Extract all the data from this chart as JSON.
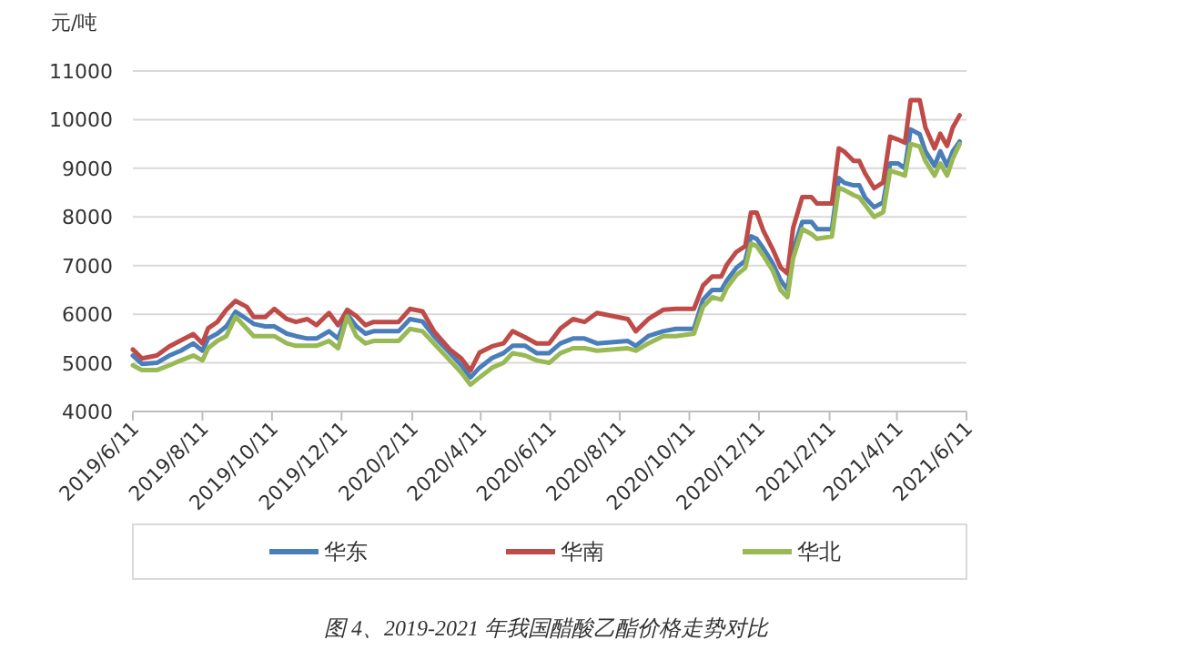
{
  "chart_data": {
    "type": "line",
    "title": "图 4、2019-2021 年我国醋酸乙酯价格走势对比",
    "ylabel": "元/吨",
    "x": [
      "2019-06-11",
      "2019-06-19",
      "2019-07-02",
      "2019-07-13",
      "2019-07-23",
      "2019-08-03",
      "2019-08-11",
      "2019-08-16",
      "2019-08-24",
      "2019-09-01",
      "2019-09-09",
      "2019-09-19",
      "2019-09-25",
      "2019-10-05",
      "2019-10-13",
      "2019-10-24",
      "2019-11-01",
      "2019-11-11",
      "2019-11-19",
      "2019-11-30",
      "2019-12-08",
      "2019-12-16",
      "2019-12-24",
      "2020-01-01",
      "2020-01-08",
      "2020-01-30",
      "2020-02-09",
      "2020-02-20",
      "2020-03-01",
      "2020-03-15",
      "2020-03-25",
      "2020-04-02",
      "2020-04-10",
      "2020-04-21",
      "2020-05-01",
      "2020-05-09",
      "2020-05-20",
      "2020-05-30",
      "2020-06-10",
      "2020-06-20",
      "2020-07-01",
      "2020-07-11",
      "2020-07-22",
      "2020-08-18",
      "2020-08-25",
      "2020-09-05",
      "2020-09-18",
      "2020-09-29",
      "2020-10-15",
      "2020-10-23",
      "2020-10-31",
      "2020-11-08",
      "2020-11-13",
      "2020-11-21",
      "2020-11-29",
      "2020-12-04",
      "2020-12-09",
      "2020-12-15",
      "2020-12-23",
      "2020-12-30",
      "2021-01-05",
      "2021-01-10",
      "2021-01-18",
      "2021-01-26",
      "2021-01-31",
      "2021-02-13",
      "2021-02-19",
      "2021-02-24",
      "2021-03-04",
      "2021-03-09",
      "2021-03-14",
      "2021-03-22",
      "2021-03-30",
      "2021-04-05",
      "2021-04-12",
      "2021-04-18",
      "2021-04-23",
      "2021-05-01",
      "2021-05-06",
      "2021-05-14",
      "2021-05-19",
      "2021-05-25",
      "2021-05-30",
      "2021-06-05"
    ],
    "series": [
      {
        "name": "华东",
        "color": "#4a7ebb",
        "values": [
          5150,
          4980,
          5000,
          5150,
          5250,
          5400,
          5250,
          5500,
          5600,
          5750,
          6050,
          5900,
          5800,
          5750,
          5750,
          5600,
          5550,
          5500,
          5500,
          5650,
          5500,
          6000,
          5750,
          5600,
          5650,
          5650,
          5900,
          5850,
          5550,
          5200,
          4950,
          4700,
          4900,
          5100,
          5200,
          5350,
          5350,
          5200,
          5200,
          5400,
          5500,
          5500,
          5400,
          5450,
          5350,
          5550,
          5650,
          5700,
          5700,
          6300,
          6500,
          6500,
          6700,
          6950,
          7100,
          7600,
          7550,
          7350,
          7050,
          6700,
          6500,
          7300,
          7900,
          7900,
          7750,
          7750,
          8800,
          8700,
          8650,
          8650,
          8400,
          8200,
          8300,
          9100,
          9100,
          9000,
          9800,
          9700,
          9350,
          9050,
          9350,
          9050,
          9350,
          9550
        ]
      },
      {
        "name": "华南",
        "color": "#be4b48",
        "values": [
          5275,
          5090,
          5150,
          5340,
          5460,
          5590,
          5400,
          5710,
          5840,
          6090,
          6275,
          6150,
          5940,
          5940,
          6110,
          5900,
          5840,
          5900,
          5775,
          6025,
          5775,
          6090,
          5960,
          5775,
          5840,
          5840,
          6110,
          6060,
          5650,
          5275,
          5090,
          4840,
          5210,
          5340,
          5400,
          5650,
          5525,
          5400,
          5400,
          5710,
          5900,
          5840,
          6025,
          5900,
          5650,
          5900,
          6090,
          6110,
          6110,
          6590,
          6775,
          6775,
          7025,
          7275,
          7400,
          8090,
          8090,
          7710,
          7340,
          6960,
          6840,
          7775,
          8410,
          8410,
          8275,
          8275,
          9410,
          9340,
          9150,
          9150,
          8900,
          8590,
          8710,
          9650,
          9590,
          9525,
          10400,
          10400,
          9840,
          9410,
          9710,
          9460,
          9840,
          10090
        ]
      },
      {
        "name": "华北",
        "color": "#98b954",
        "values": [
          4950,
          4850,
          4850,
          4950,
          5050,
          5150,
          5050,
          5300,
          5450,
          5550,
          5950,
          5700,
          5550,
          5550,
          5550,
          5400,
          5350,
          5350,
          5350,
          5450,
          5300,
          5950,
          5550,
          5400,
          5450,
          5450,
          5700,
          5650,
          5400,
          5050,
          4800,
          4550,
          4700,
          4900,
          5000,
          5200,
          5150,
          5050,
          5000,
          5200,
          5300,
          5300,
          5250,
          5300,
          5250,
          5400,
          5550,
          5550,
          5600,
          6150,
          6350,
          6300,
          6550,
          6800,
          6950,
          7450,
          7400,
          7200,
          6900,
          6500,
          6350,
          7150,
          7750,
          7650,
          7550,
          7600,
          8600,
          8550,
          8450,
          8400,
          8250,
          8000,
          8100,
          8950,
          8900,
          8850,
          9500,
          9450,
          9150,
          8850,
          9100,
          8850,
          9200,
          9500
        ]
      }
    ],
    "xlim": [
      "2019-06-11",
      "2021-06-11"
    ],
    "xticks": [
      {
        "value": "2019-06-11",
        "label": "2019/6/11"
      },
      {
        "value": "2019-08-11",
        "label": "2019/8/11"
      },
      {
        "value": "2019-10-11",
        "label": "2019/10/11"
      },
      {
        "value": "2019-12-11",
        "label": "2019/12/11"
      },
      {
        "value": "2020-02-11",
        "label": "2020/2/11"
      },
      {
        "value": "2020-04-11",
        "label": "2020/4/11"
      },
      {
        "value": "2020-06-11",
        "label": "2020/6/11"
      },
      {
        "value": "2020-08-11",
        "label": "2020/8/11"
      },
      {
        "value": "2020-10-11",
        "label": "2020/10/11"
      },
      {
        "value": "2020-12-11",
        "label": "2020/12/11"
      },
      {
        "value": "2021-02-11",
        "label": "2021/2/11"
      },
      {
        "value": "2021-04-11",
        "label": "2021/4/11"
      },
      {
        "value": "2021-06-11",
        "label": "2021/6/11"
      }
    ],
    "ylim": [
      4000,
      11000
    ],
    "yticks": [
      4000,
      5000,
      6000,
      7000,
      8000,
      9000,
      10000,
      11000
    ],
    "grid": "y",
    "legend": "bottom",
    "marker": "none",
    "line_style": "solid"
  }
}
